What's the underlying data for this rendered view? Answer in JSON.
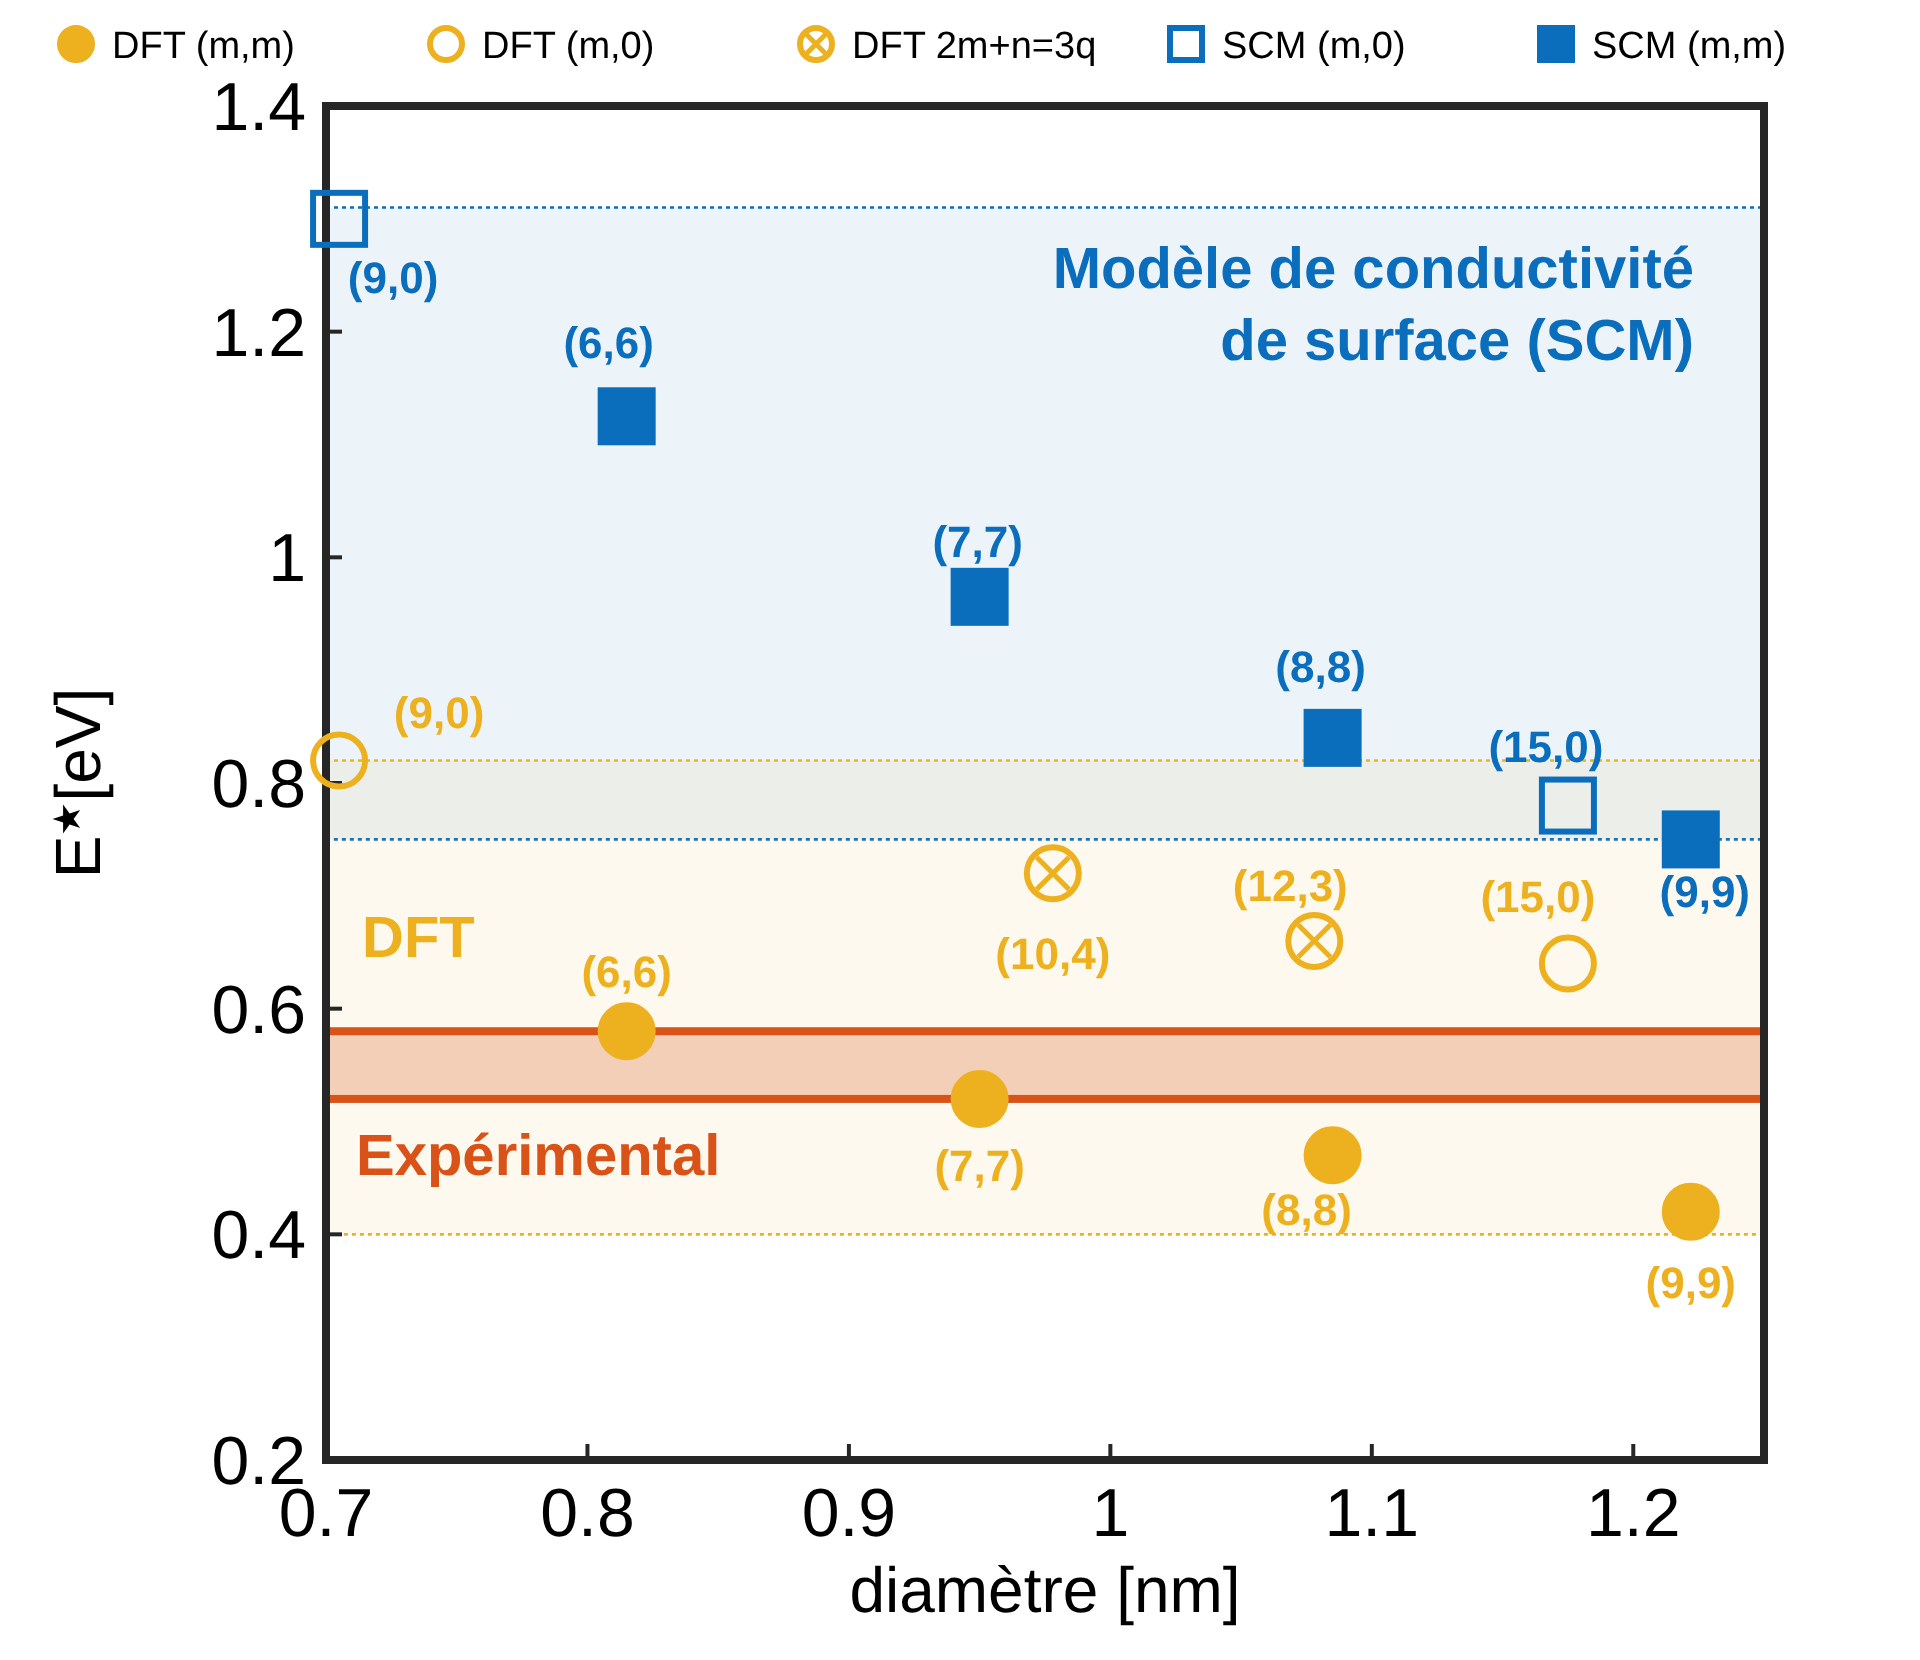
{
  "chart_data": {
    "type": "scatter",
    "xlabel": "diamètre [nm]",
    "ylabel": "E$^{★}$[eV]",
    "xlim": [
      0.7,
      1.25
    ],
    "ylim": [
      0.2,
      1.4
    ],
    "xticks": [
      0.7,
      0.8,
      0.9,
      1,
      1.1,
      1.2
    ],
    "yticks": [
      0.2,
      0.4,
      0.6,
      0.8,
      1,
      1.2,
      1.4
    ],
    "legend": "top",
    "grid": false,
    "series": [
      {
        "name": "DFT (m,m)",
        "color": "#edb120",
        "marker": "circle",
        "x": [
          0.815,
          0.95,
          1.085,
          1.222
        ],
        "values": [
          0.58,
          0.52,
          0.47,
          0.42
        ]
      },
      {
        "name": "DFT (m,0)",
        "color": "#edb120",
        "marker": "circle",
        "x": [
          0.705,
          1.175
        ],
        "values": [
          0.82,
          0.64
        ]
      },
      {
        "name": "DFT 2m+n=3q",
        "color": "#edb120",
        "marker": "circle",
        "x": [
          0.978,
          1.078
        ],
        "values": [
          0.72,
          0.66
        ]
      },
      {
        "name": "SCM (m,0)",
        "color": "#0a6ebd",
        "marker": "square",
        "x": [
          0.705,
          1.175
        ],
        "values": [
          1.3,
          0.78
        ]
      },
      {
        "name": "SCM (m,m)",
        "color": "#0a6ebd",
        "marker": "square",
        "x": [
          0.815,
          0.95,
          1.085,
          1.222
        ],
        "values": [
          1.125,
          0.965,
          0.84,
          0.75
        ]
      }
    ],
    "bands": [
      {
        "axis": "y",
        "from": 0.75,
        "to": 1.31,
        "label": "Modèle de conductivité\nde surface (SCM)",
        "color": "#0a6ebd"
      },
      {
        "axis": "y",
        "from": 0.4,
        "to": 0.82,
        "label": "DFT",
        "color": "#edb120"
      },
      {
        "axis": "y",
        "from": 0.52,
        "to": 0.58,
        "label": "Expérimental",
        "color": "#d95319"
      }
    ],
    "annotations": [
      {
        "text": "(9,0)",
        "x": 0.705,
        "y": 1.3
      },
      {
        "text": "(6,6)",
        "x": 0.815,
        "y": 1.125
      },
      {
        "text": "(7,7)",
        "x": 0.95,
        "y": 0.965
      },
      {
        "text": "(8,8)",
        "x": 1.085,
        "y": 0.84
      },
      {
        "text": "(15,0)",
        "x": 1.175,
        "y": 0.78
      },
      {
        "text": "(9,9)",
        "x": 1.222,
        "y": 0.75
      },
      {
        "text": "(9,0)",
        "x": 0.705,
        "y": 0.82
      },
      {
        "text": "(6,6)",
        "x": 0.815,
        "y": 0.58
      },
      {
        "text": "(10,4)",
        "x": 0.978,
        "y": 0.72
      },
      {
        "text": "(12,3)",
        "x": 1.078,
        "y": 0.66
      },
      {
        "text": "(15,0)",
        "x": 1.175,
        "y": 0.64
      },
      {
        "text": "(7,7)",
        "x": 0.95,
        "y": 0.52
      },
      {
        "text": "(8,8)",
        "x": 1.085,
        "y": 0.47
      },
      {
        "text": "(9,9)",
        "x": 1.222,
        "y": 0.42
      }
    ]
  }
}
